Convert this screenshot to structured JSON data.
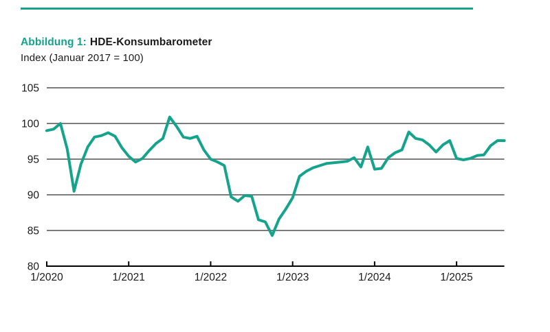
{
  "header": {
    "figure_label": "Abbildung 1:",
    "figure_name": "HDE-Konsumbarometer",
    "subtitle": "Index (Januar 2017 = 100)"
  },
  "colors": {
    "accent": "#15a38b",
    "grid": "#7c7c7c",
    "axis": "#000000",
    "text": "#1a1a1a"
  },
  "chart_data": {
    "type": "line",
    "title": "Abbildung 1: HDE-Konsumbarometer",
    "subtitle": "Index (Januar 2017 = 100)",
    "ylabel": "Index (Januar 2017 = 100)",
    "ylim": [
      80,
      105
    ],
    "y_ticks": [
      105,
      100,
      95,
      90,
      85,
      80
    ],
    "x_tick_labels": [
      "1/2020",
      "1/2021",
      "1/2022",
      "1/2023",
      "1/2024",
      "1/2025"
    ],
    "grid": "horizontal",
    "legend_position": "none",
    "line_color": "#15a38b",
    "series": [
      {
        "name": "HDE-Konsumbarometer",
        "x": [
          "1/2020",
          "2/2020",
          "3/2020",
          "4/2020",
          "5/2020",
          "6/2020",
          "7/2020",
          "8/2020",
          "9/2020",
          "10/2020",
          "11/2020",
          "12/2020",
          "1/2021",
          "2/2021",
          "3/2021",
          "4/2021",
          "5/2021",
          "6/2021",
          "7/2021",
          "8/2021",
          "9/2021",
          "10/2021",
          "11/2021",
          "12/2021",
          "1/2022",
          "2/2022",
          "3/2022",
          "4/2022",
          "5/2022",
          "6/2022",
          "7/2022",
          "8/2022",
          "9/2022",
          "10/2022",
          "11/2022",
          "12/2022",
          "1/2023",
          "2/2023",
          "3/2023",
          "4/2023",
          "5/2023",
          "6/2023",
          "7/2023",
          "8/2023",
          "9/2023",
          "10/2023",
          "11/2023",
          "12/2023",
          "1/2024",
          "2/2024",
          "3/2024",
          "4/2024",
          "5/2024",
          "6/2024",
          "7/2024",
          "8/2024",
          "9/2024",
          "10/2024",
          "11/2024",
          "12/2024",
          "1/2025",
          "2/2025",
          "3/2025",
          "4/2025",
          "5/2025",
          "6/2025",
          "7/2025",
          "8/2025"
        ],
        "values": [
          99.0,
          99.2,
          100.0,
          96.4,
          90.5,
          94.3,
          96.7,
          98.1,
          98.3,
          98.7,
          98.2,
          96.6,
          95.4,
          94.6,
          95.1,
          96.2,
          97.2,
          97.9,
          100.9,
          99.6,
          98.1,
          97.9,
          98.2,
          96.3,
          95.0,
          94.6,
          94.1,
          89.7,
          89.1,
          89.9,
          89.8,
          86.5,
          86.2,
          84.3,
          86.6,
          88.0,
          89.6,
          92.6,
          93.3,
          93.8,
          94.1,
          94.4,
          94.5,
          94.6,
          94.7,
          95.2,
          93.9,
          96.7,
          93.6,
          93.7,
          95.2,
          95.9,
          96.3,
          98.8,
          97.9,
          97.7,
          97.0,
          96.0,
          97.0,
          97.6,
          95.1,
          94.9,
          95.1,
          95.5,
          95.6,
          96.9,
          97.6,
          97.6
        ]
      }
    ]
  }
}
